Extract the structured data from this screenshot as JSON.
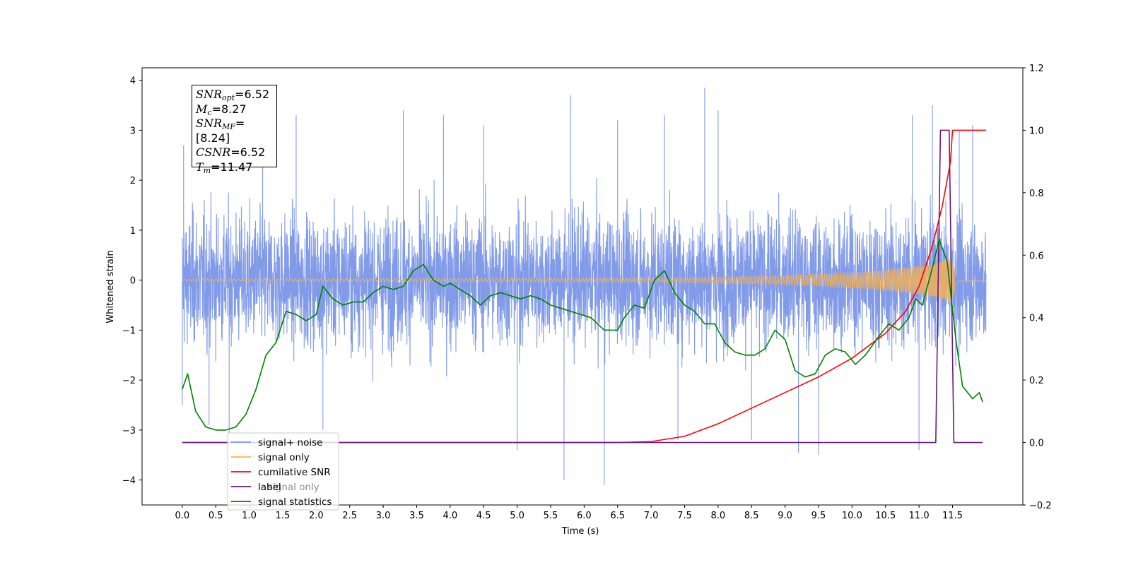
{
  "chart_data": {
    "type": "line",
    "title": "",
    "xlabel": "Time (s)",
    "ylabel_left": "Whitened strain",
    "ylabel_right": "",
    "xlim": [
      -0.6,
      12.55
    ],
    "ylim_left": [
      -4.5,
      4.25
    ],
    "ylim_right": [
      -0.2,
      1.2
    ],
    "x_ticks": [
      0.0,
      0.5,
      1.0,
      1.5,
      2.0,
      2.5,
      3.0,
      3.5,
      4.0,
      4.5,
      5.0,
      5.5,
      6.0,
      6.5,
      7.0,
      7.5,
      8.0,
      8.5,
      9.0,
      9.5,
      10.0,
      10.5,
      11.0,
      11.5
    ],
    "x_tick_labels": [
      "0.0",
      "0.5",
      "1.0",
      "1.5",
      "2.0",
      "2.5",
      "3.0",
      "3.5",
      "4.0",
      "4.5",
      "5.0",
      "5.5",
      "6.0",
      "6.5",
      "7.0",
      "7.5",
      "8.0",
      "8.5",
      "9.0",
      "9.5",
      "10.0",
      "10.5",
      "11.0",
      "11.5"
    ],
    "y_ticks_left": [
      -4,
      -3,
      -2,
      -1,
      0,
      1,
      2,
      3,
      4
    ],
    "y_tick_labels_left": [
      "−4",
      "−3",
      "−2",
      "−1",
      "0",
      "1",
      "2",
      "3",
      "4"
    ],
    "y_ticks_right": [
      -0.2,
      0.0,
      0.2,
      0.4,
      0.6,
      0.8,
      1.0,
      1.2
    ],
    "y_tick_labels_right": [
      "−0.2",
      "0.0",
      "0.2",
      "0.4",
      "0.6",
      "0.8",
      "1.0",
      "1.2"
    ],
    "grid": false,
    "legend_placement": "lower-left",
    "series": [
      {
        "name": "signal+ noise",
        "axis": "left",
        "color": "#7b96e8",
        "kind": "noisy band",
        "x_range": [
          0.0,
          12.0
        ],
        "band_low": -2.2,
        "band_high": 2.2,
        "spike_samples": [
          [
            0.0,
            -2.5
          ],
          [
            0.02,
            2.7
          ],
          [
            0.4,
            -2.9
          ],
          [
            0.7,
            -3.1
          ],
          [
            1.2,
            3.0
          ],
          [
            1.7,
            3.3
          ],
          [
            2.1,
            -3.0
          ],
          [
            3.3,
            3.4
          ],
          [
            3.9,
            3.3
          ],
          [
            4.5,
            3.1
          ],
          [
            5.0,
            -3.4
          ],
          [
            5.7,
            -4.0
          ],
          [
            5.8,
            3.7
          ],
          [
            6.3,
            -4.1
          ],
          [
            6.5,
            3.2
          ],
          [
            7.2,
            3.3
          ],
          [
            7.4,
            -3.2
          ],
          [
            7.8,
            3.85
          ],
          [
            8.0,
            3.4
          ],
          [
            8.5,
            -3.2
          ],
          [
            9.2,
            -3.45
          ],
          [
            9.5,
            -3.5
          ],
          [
            10.9,
            3.3
          ],
          [
            11.0,
            -3.4
          ],
          [
            11.2,
            3.5
          ],
          [
            11.6,
            3.0
          ],
          [
            11.8,
            3.1
          ]
        ]
      },
      {
        "name": "signal only",
        "axis": "left",
        "color": "#ffb347",
        "kind": "chirp",
        "envelope": [
          [
            0.0,
            0.02
          ],
          [
            7.0,
            0.04
          ],
          [
            8.0,
            0.06
          ],
          [
            9.0,
            0.09
          ],
          [
            10.0,
            0.15
          ],
          [
            10.5,
            0.2
          ],
          [
            11.0,
            0.28
          ],
          [
            11.3,
            0.35
          ],
          [
            11.47,
            0.45
          ],
          [
            11.6,
            0.05
          ]
        ]
      },
      {
        "name": "cumilative SNR",
        "axis": "right",
        "color": "#ff0000",
        "points": [
          [
            0.0,
            0.0
          ],
          [
            6.5,
            0.0
          ],
          [
            7.0,
            0.003
          ],
          [
            7.5,
            0.02
          ],
          [
            8.0,
            0.06
          ],
          [
            8.5,
            0.11
          ],
          [
            9.0,
            0.16
          ],
          [
            9.5,
            0.21
          ],
          [
            10.0,
            0.27
          ],
          [
            10.5,
            0.35
          ],
          [
            10.8,
            0.42
          ],
          [
            11.0,
            0.5
          ],
          [
            11.2,
            0.63
          ],
          [
            11.35,
            0.76
          ],
          [
            11.47,
            0.9
          ],
          [
            11.5,
            1.0
          ],
          [
            12.0,
            1.0
          ]
        ]
      },
      {
        "name": "label",
        "axis": "right",
        "color": "#6a1b7a",
        "points": [
          [
            0.0,
            0.0
          ],
          [
            11.25,
            0.0
          ],
          [
            11.32,
            1.0
          ],
          [
            11.45,
            1.0
          ],
          [
            11.52,
            0.0
          ],
          [
            11.95,
            0.0
          ]
        ]
      },
      {
        "name": "signal statistics",
        "axis": "right",
        "color": "#008000",
        "points": [
          [
            0.0,
            0.17
          ],
          [
            0.08,
            0.22
          ],
          [
            0.2,
            0.1
          ],
          [
            0.35,
            0.05
          ],
          [
            0.5,
            0.04
          ],
          [
            0.65,
            0.04
          ],
          [
            0.8,
            0.05
          ],
          [
            0.95,
            0.09
          ],
          [
            1.1,
            0.17
          ],
          [
            1.25,
            0.28
          ],
          [
            1.4,
            0.32
          ],
          [
            1.55,
            0.42
          ],
          [
            1.7,
            0.41
          ],
          [
            1.85,
            0.39
          ],
          [
            2.0,
            0.41
          ],
          [
            2.1,
            0.5
          ],
          [
            2.25,
            0.46
          ],
          [
            2.4,
            0.44
          ],
          [
            2.55,
            0.45
          ],
          [
            2.7,
            0.45
          ],
          [
            2.85,
            0.48
          ],
          [
            3.0,
            0.5
          ],
          [
            3.15,
            0.49
          ],
          [
            3.3,
            0.5
          ],
          [
            3.45,
            0.55
          ],
          [
            3.6,
            0.57
          ],
          [
            3.75,
            0.52
          ],
          [
            3.9,
            0.5
          ],
          [
            4.0,
            0.51
          ],
          [
            4.15,
            0.49
          ],
          [
            4.3,
            0.47
          ],
          [
            4.45,
            0.44
          ],
          [
            4.6,
            0.47
          ],
          [
            4.75,
            0.48
          ],
          [
            4.9,
            0.47
          ],
          [
            5.05,
            0.46
          ],
          [
            5.2,
            0.47
          ],
          [
            5.35,
            0.46
          ],
          [
            5.5,
            0.44
          ],
          [
            5.65,
            0.43
          ],
          [
            5.8,
            0.42
          ],
          [
            5.95,
            0.41
          ],
          [
            6.1,
            0.4
          ],
          [
            6.3,
            0.36
          ],
          [
            6.5,
            0.36
          ],
          [
            6.6,
            0.4
          ],
          [
            6.75,
            0.44
          ],
          [
            6.9,
            0.43
          ],
          [
            7.05,
            0.52
          ],
          [
            7.2,
            0.55
          ],
          [
            7.35,
            0.48
          ],
          [
            7.5,
            0.44
          ],
          [
            7.65,
            0.42
          ],
          [
            7.8,
            0.38
          ],
          [
            7.95,
            0.38
          ],
          [
            8.1,
            0.32
          ],
          [
            8.25,
            0.29
          ],
          [
            8.4,
            0.28
          ],
          [
            8.55,
            0.28
          ],
          [
            8.7,
            0.3
          ],
          [
            8.85,
            0.36
          ],
          [
            9.0,
            0.33
          ],
          [
            9.15,
            0.23
          ],
          [
            9.3,
            0.21
          ],
          [
            9.45,
            0.22
          ],
          [
            9.6,
            0.28
          ],
          [
            9.75,
            0.3
          ],
          [
            9.9,
            0.29
          ],
          [
            10.05,
            0.25
          ],
          [
            10.2,
            0.28
          ],
          [
            10.4,
            0.34
          ],
          [
            10.55,
            0.38
          ],
          [
            10.7,
            0.36
          ],
          [
            10.85,
            0.4
          ],
          [
            10.95,
            0.46
          ],
          [
            11.05,
            0.44
          ],
          [
            11.2,
            0.56
          ],
          [
            11.3,
            0.65
          ],
          [
            11.42,
            0.58
          ],
          [
            11.55,
            0.33
          ],
          [
            11.65,
            0.18
          ],
          [
            11.8,
            0.14
          ],
          [
            11.9,
            0.16
          ],
          [
            11.95,
            0.13
          ]
        ]
      }
    ],
    "legend": [
      "signal+ noise",
      "signal only",
      "cumilative SNR",
      "label",
      "signal statistics"
    ],
    "legend_overlapped_text": "signal only"
  },
  "annotation": {
    "snr_opt": {
      "sym": "SNR",
      "sub": "opt",
      "value": "=6.52"
    },
    "mc": {
      "sym": "M",
      "sub": "c",
      "value": "=8.27"
    },
    "snr_mf": {
      "sym": "SNR",
      "sub": "MF",
      "value": "=[8.24]"
    },
    "csnr": {
      "sym": "CSNR",
      "sub": "",
      "value": "=6.52"
    },
    "tm": {
      "sym": "T",
      "sub": "m",
      "value": "=11.47"
    }
  }
}
